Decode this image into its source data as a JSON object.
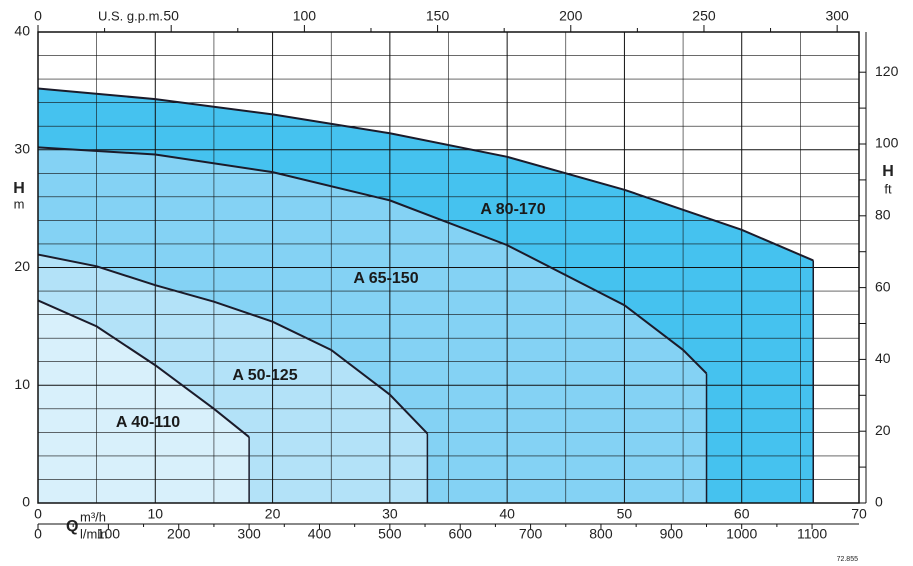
{
  "chart_data": {
    "type": "area",
    "x_label": "Q",
    "x_unit": "m³/h",
    "x3_unit": "l/min",
    "x2_unit": "U.S. g.p.m.",
    "y_label": "H",
    "y_unit": "m",
    "y2_label": "H",
    "y2_unit": "ft",
    "code": "72.855",
    "xlim": [
      0,
      70
    ],
    "xticks": [
      0,
      10,
      20,
      30,
      40,
      50,
      60,
      70
    ],
    "x2lim": [
      0,
      308.2
    ],
    "x2ticks": [
      0,
      50,
      100,
      150,
      200,
      250,
      300
    ],
    "x3lim": [
      0,
      1166.7
    ],
    "x3ticks": [
      0,
      100,
      200,
      300,
      400,
      500,
      600,
      700,
      800,
      900,
      1000,
      1100
    ],
    "ylim": [
      0,
      40
    ],
    "yticks": [
      0,
      10,
      20,
      30,
      40
    ],
    "y2lim": [
      0,
      131.2
    ],
    "y2ticks": [
      0,
      20,
      40,
      60,
      80,
      100,
      120
    ],
    "grid": true,
    "series": [
      {
        "name": "A 80-170",
        "color": "#45c2ef",
        "x": [
          0,
          10,
          20,
          30,
          40,
          50,
          60,
          66.1
        ],
        "values": [
          35.2,
          34.3,
          33,
          31.4,
          29.4,
          26.6,
          23.2,
          20.6
        ]
      },
      {
        "name": "A 65-150",
        "color": "#84d2f4",
        "x": [
          0,
          10,
          20,
          30,
          40,
          50,
          55,
          57
        ],
        "values": [
          30.2,
          29.6,
          28.1,
          25.7,
          21.9,
          16.8,
          13,
          11
        ]
      },
      {
        "name": "A 50-125",
        "color": "#b3e2f8",
        "x": [
          0,
          5,
          10,
          15,
          20,
          25,
          30,
          33.2
        ],
        "values": [
          21.1,
          20.1,
          18.5,
          17.1,
          15.4,
          13,
          9.2,
          5.9
        ]
      },
      {
        "name": "A 40-110",
        "color": "#d8f0fb",
        "x": [
          0,
          5,
          10,
          15,
          18
        ],
        "values": [
          17.2,
          15,
          11.7,
          8,
          5.6
        ]
      }
    ]
  }
}
